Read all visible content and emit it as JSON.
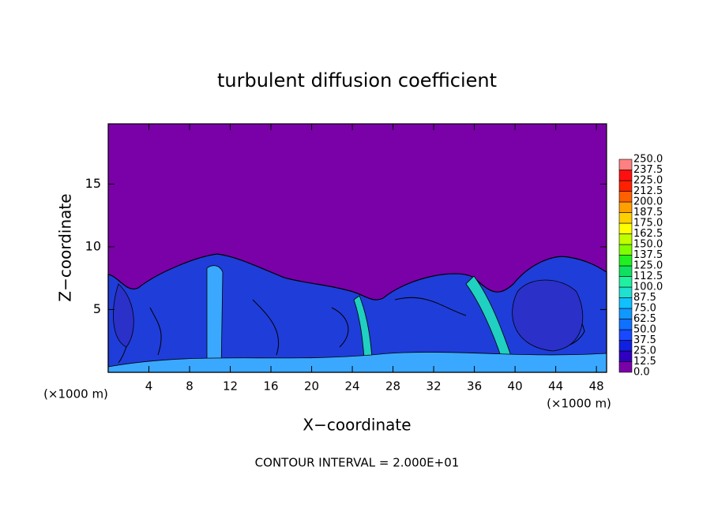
{
  "chart_data": {
    "type": "contour",
    "title": "turbulent diffusion coefficient",
    "xlabel": "X−coordinate",
    "ylabel": "Z−coordinate",
    "x_unit_label": "(×1000 m)",
    "x_unit_label_right": "(×1000 m)",
    "footer": "CONTOUR INTERVAL = 2.000E+01",
    "xlim": [
      0,
      49
    ],
    "ylim": [
      0,
      19.8
    ],
    "xticks": [
      4,
      8,
      12,
      16,
      20,
      24,
      28,
      32,
      36,
      40,
      44,
      48
    ],
    "yticks": [
      5,
      10,
      15
    ],
    "background_color": "#7a00a8",
    "colorbar": {
      "levels": [
        {
          "value": 0,
          "label": "0.0"
        },
        12.5,
        {
          "value": 25,
          "label": "25.0"
        },
        37.5,
        {
          "value": 50,
          "label": "50.0"
        },
        62.5,
        {
          "value": 75,
          "label": "75.0"
        },
        87.5,
        {
          "value": 100,
          "label": "100.0"
        },
        112.5,
        {
          "value": 125,
          "label": "125.0"
        },
        137.5,
        {
          "value": 150,
          "label": "150.0"
        },
        162.5,
        {
          "value": 175,
          "label": "175.0"
        },
        187.5,
        {
          "value": 200,
          "label": "200.0"
        },
        212.5,
        {
          "value": 225,
          "label": "225.0"
        },
        237.5,
        {
          "value": 250,
          "label": "250.0"
        }
      ],
      "colors": [
        "#7a00a8",
        "#3000c0",
        "#1020e0",
        "#1848ff",
        "#1070ff",
        "#1098ff",
        "#10c0ff",
        "#20e0d0",
        "#20f0a0",
        "#10e060",
        "#20f020",
        "#80ff00",
        "#c0ff00",
        "#ffff00",
        "#ffd000",
        "#ffa000",
        "#ff6000",
        "#ff2000",
        "#ff1010",
        "#ff8080"
      ]
    }
  }
}
